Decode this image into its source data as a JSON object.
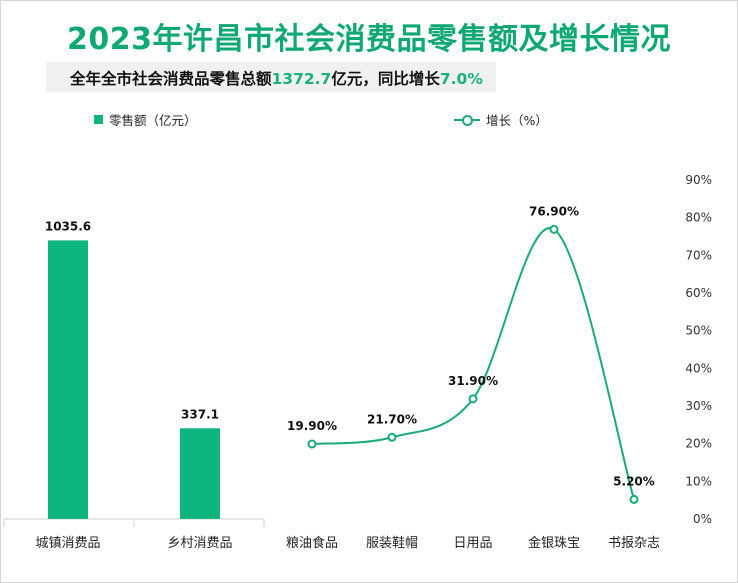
{
  "title": "2023年许昌市社会消费品零售额及增长情况",
  "subtitle": {
    "prefix": "全年全市社会消费品零售总额",
    "amount": "1372.7",
    "mid": "亿元，同比增长",
    "growth": "7.0%"
  },
  "colors": {
    "title": "#0fa875",
    "bar": "#0fb57e",
    "line": "#1aaa78",
    "highlight": "#17b27a"
  },
  "chart_data": [
    {
      "type": "bar",
      "legend": "零售额（亿元）",
      "categories": [
        "城镇消费品",
        "乡村消费品"
      ],
      "values": [
        1035.6,
        337.1
      ],
      "value_labels": [
        "1035.6",
        "337.1"
      ],
      "ylim": [
        0,
        1260
      ]
    },
    {
      "type": "line",
      "legend": "增长（%）",
      "categories": [
        "粮油食品",
        "服装鞋帽",
        "日用品",
        "金银珠宝",
        "书报杂志"
      ],
      "values": [
        19.9,
        21.7,
        31.9,
        76.9,
        5.2
      ],
      "value_labels": [
        "19.90%",
        "21.70%",
        "31.90%",
        "76.90%",
        "5.20%"
      ],
      "ylim": [
        0,
        90
      ],
      "y_ticks": [
        "0%",
        "10%",
        "20%",
        "30%",
        "40%",
        "50%",
        "60%",
        "70%",
        "80%",
        "90%"
      ]
    }
  ]
}
